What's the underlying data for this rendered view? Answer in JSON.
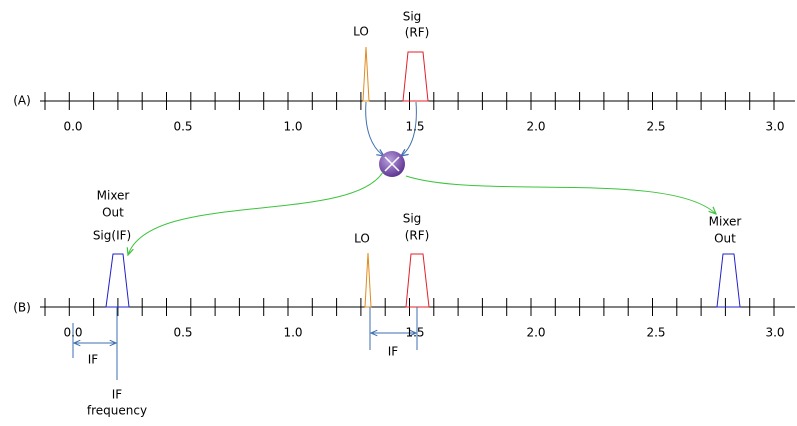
{
  "row_a": {
    "label": "(A)",
    "lo": "LO",
    "sig": [
      "Sig",
      "(RF)"
    ]
  },
  "row_b": {
    "label": "(B)",
    "lo": "LO",
    "sig": [
      "Sig",
      "(RF)"
    ],
    "mixer_out_left": [
      "Mixer",
      "Out",
      "Sig(IF)"
    ],
    "mixer_out_right": [
      "Mixer",
      "Out"
    ],
    "if_left": "IF",
    "if_middle": "IF",
    "if_frequency": [
      "IF",
      "frequency"
    ]
  },
  "axis_labels": [
    "0.0",
    "0.5",
    "1.0",
    "1.5",
    "2.0",
    "2.5",
    "3.0"
  ]
}
